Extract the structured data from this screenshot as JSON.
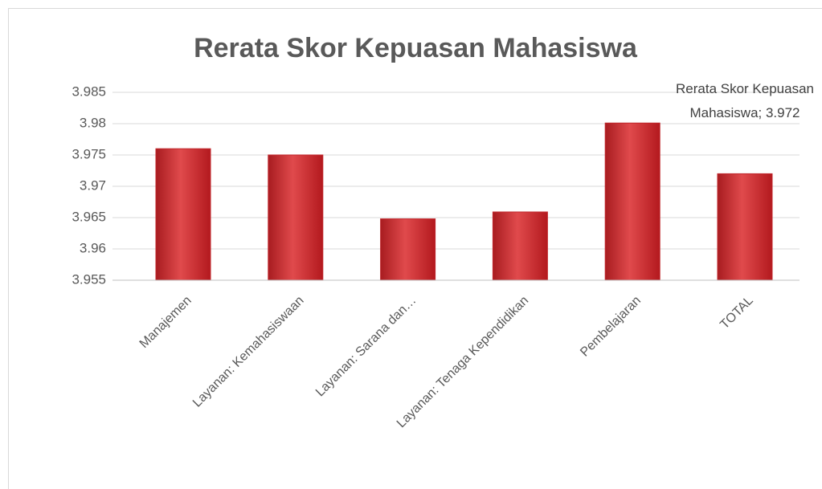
{
  "chart_data": {
    "type": "bar",
    "title": "Rerata Skor Kepuasan Mahasiswa",
    "categories": [
      "Manajemen",
      "Layanan: Kemahasiswaan",
      "Layanan: Sarana dan…",
      "Layanan: Tenaga Kependidikan",
      "Pembelajaran",
      "TOTAL"
    ],
    "values": [
      3.976,
      3.975,
      3.9648,
      3.9659,
      3.9801,
      3.972
    ],
    "value_labels": [
      null,
      null,
      null,
      null,
      null,
      "Rerata Skor Kepuasan Mahasiswa; 3.972"
    ],
    "color": "#c0262b",
    "ylim": [
      3.955,
      3.985
    ],
    "yticks": [
      3.955,
      3.96,
      3.965,
      3.97,
      3.975,
      3.98,
      3.985
    ],
    "grid": true
  }
}
